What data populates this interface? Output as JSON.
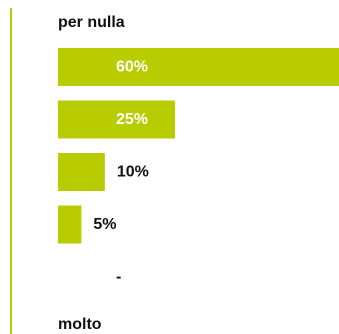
{
  "scale": {
    "top_label": "per nulla",
    "bottom_label": "molto"
  },
  "colors": {
    "bar": "#b8cc00",
    "label_inside": "#ffffff",
    "label_outside": "#111111"
  },
  "chart_data": {
    "type": "bar",
    "orientation": "horizontal",
    "categories": [
      "per nulla",
      "",
      "",
      "",
      "molto"
    ],
    "values": [
      60,
      25,
      10,
      5,
      null
    ],
    "data_labels": [
      "60%",
      "25%",
      "10%",
      "5%",
      "-"
    ],
    "xlim": [
      0,
      60
    ]
  }
}
